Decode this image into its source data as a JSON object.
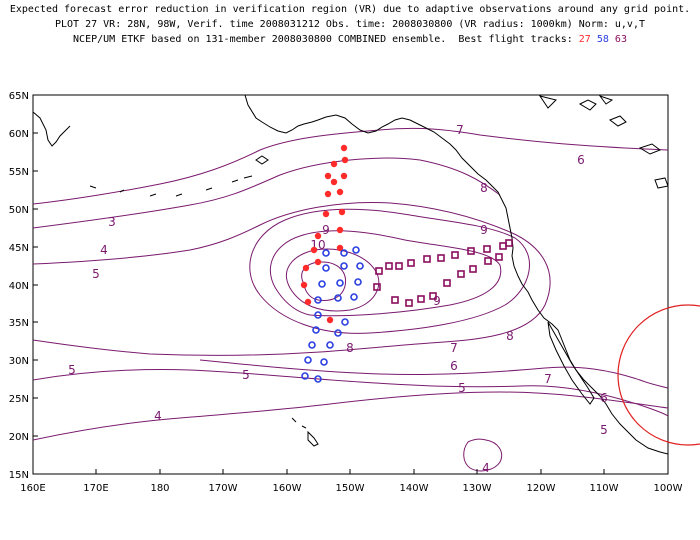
{
  "header": {
    "line1": "Expected forecast error reduction in verification region (VR) due to adaptive observations around any grid point.",
    "line2": "PLOT 27 VR: 28N, 98W, Verif. time 2008031212 Obs. time: 2008030800 (VR radius: 1000km) Norm: u,v,T",
    "line3_prefix": "NCEP/UM ETKF based on 131-member 2008030800 COMBINED ensemble.  Best flight tracks:",
    "flight_ids": {
      "red": "27",
      "blue": "58",
      "purple": "63"
    }
  },
  "map": {
    "lat_labels": [
      "65N",
      "60N",
      "55N",
      "50N",
      "45N",
      "40N",
      "35N",
      "30N",
      "25N",
      "20N",
      "15N"
    ],
    "lon_labels": [
      "160E",
      "170E",
      "180",
      "170W",
      "160W",
      "150W",
      "140W",
      "130W",
      "120W",
      "110W",
      "100W"
    ],
    "contour_labels": [
      "3",
      "4",
      "5",
      "5",
      "5",
      "4",
      "4",
      "5",
      "5",
      "6",
      "6",
      "7",
      "7",
      "7",
      "8",
      "8",
      "8",
      "9",
      "9",
      "9",
      "10",
      "6"
    ],
    "verification_region": {
      "center_lat": 28,
      "center_lon": -98,
      "radius_km": 1000
    }
  },
  "colors": {
    "contour": "#7a1a6e",
    "flight_red": "#ff2a2a",
    "flight_blue": "#2a3fe0",
    "flight_purple": "#8a0d5e",
    "vr_circle": "#e02020"
  }
}
